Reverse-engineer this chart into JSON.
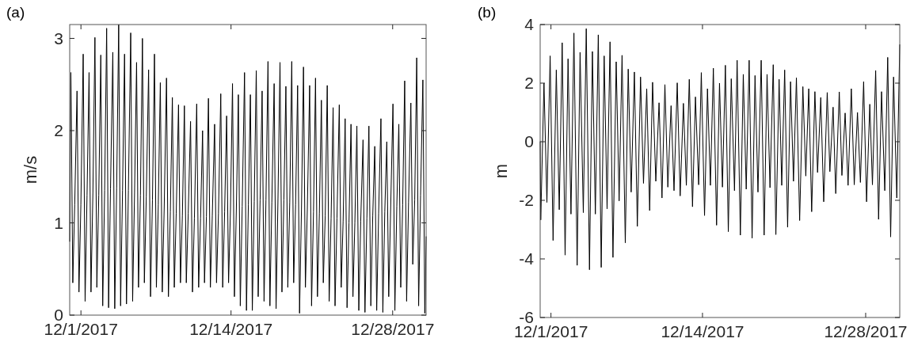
{
  "chart_data": [
    {
      "type": "line",
      "title": "(a)",
      "ylabel": "m/s",
      "color": "#000000",
      "xlim": [
        "2017-11-30T00:37",
        "2017-12-30T21:32"
      ],
      "ylim": [
        0,
        3.15
      ],
      "xticks": [
        {
          "value": "2017-12-01",
          "label": "12/1/2017"
        },
        {
          "value": "2017-12-14",
          "label": "12/14/2017"
        },
        {
          "value": "2017-12-28",
          "label": "12/28/2017"
        }
      ],
      "yticks": [
        0,
        1,
        2,
        3
      ],
      "x": [
        "2017-11-30T00:37",
        "2017-11-30T03:03",
        "2017-11-30T07:03",
        "2017-11-30T11:03",
        "2017-11-30T15:52",
        "2017-11-30T19:52",
        "2017-11-30T23:52",
        "2017-12-01T04:40",
        "2017-12-01T08:40",
        "2017-12-01T12:40",
        "2017-12-01T16:52",
        "2017-12-01T20:52",
        "2017-12-02T00:52",
        "2017-12-02T05:04",
        "2017-12-02T09:04",
        "2017-12-02T13:04",
        "2017-12-02T17:16",
        "2017-12-02T21:16",
        "2017-12-03T01:16",
        "2017-12-03T05:27",
        "2017-12-03T09:27",
        "2017-12-03T13:27",
        "2017-12-03T18:16",
        "2017-12-03T22:16",
        "2017-12-04T02:16",
        "2017-12-04T06:27",
        "2017-12-04T10:27",
        "2017-12-04T14:27",
        "2017-12-04T18:39",
        "2017-12-04T22:39",
        "2017-12-05T02:39",
        "2017-12-05T07:27",
        "2017-12-05T11:27",
        "2017-12-05T15:27",
        "2017-12-05T19:39",
        "2017-12-05T23:39",
        "2017-12-06T03:39",
        "2017-12-06T07:50",
        "2017-12-06T11:50",
        "2017-12-06T15:50",
        "2017-12-06T20:39",
        "2017-12-07T00:39",
        "2017-12-07T04:39",
        "2017-12-07T08:50",
        "2017-12-07T12:50",
        "2017-12-07T16:50",
        "2017-12-07T21:02",
        "2017-12-08T01:02",
        "2017-12-08T05:02",
        "2017-12-08T09:51",
        "2017-12-08T13:51",
        "2017-12-08T17:51",
        "2017-12-08T22:02",
        "2017-12-09T02:02",
        "2017-12-09T06:02",
        "2017-12-09T10:51",
        "2017-12-09T14:51",
        "2017-12-09T18:51",
        "2017-12-09T23:02",
        "2017-12-10T03:02",
        "2017-12-10T07:02",
        "2017-12-10T11:51",
        "2017-12-10T15:51",
        "2017-12-10T19:51",
        "2017-12-11T00:40",
        "2017-12-11T04:40",
        "2017-12-11T08:40",
        "2017-12-11T12:51",
        "2017-12-11T16:51",
        "2017-12-11T20:51",
        "2017-12-12T01:03",
        "2017-12-12T05:03",
        "2017-12-12T09:03",
        "2017-12-12T13:51",
        "2017-12-12T17:51",
        "2017-12-12T21:51",
        "2017-12-13T02:40",
        "2017-12-13T06:40",
        "2017-12-13T10:40",
        "2017-12-13T14:52",
        "2017-12-13T18:52",
        "2017-12-13T22:52",
        "2017-12-14T03:03",
        "2017-12-14T07:03",
        "2017-12-14T11:03",
        "2017-12-14T15:15",
        "2017-12-14T19:15",
        "2017-12-14T23:15",
        "2017-12-15T04:04",
        "2017-12-15T08:04",
        "2017-12-15T12:04",
        "2017-12-15T16:15",
        "2017-12-15T20:15",
        "2017-12-16T00:15",
        "2017-12-16T04:27",
        "2017-12-16T08:27",
        "2017-12-16T12:27",
        "2017-12-16T16:38",
        "2017-12-16T20:38",
        "2017-12-17T00:38",
        "2017-12-17T04:50",
        "2017-12-17T08:50",
        "2017-12-17T12:50",
        "2017-12-17T17:38",
        "2017-12-17T21:38",
        "2017-12-18T01:38",
        "2017-12-18T05:50",
        "2017-12-18T09:50",
        "2017-12-18T13:50",
        "2017-12-18T18:02",
        "2017-12-18T22:02",
        "2017-12-19T02:02",
        "2017-12-19T06:14",
        "2017-12-19T10:14",
        "2017-12-19T14:14",
        "2017-12-19T18:26",
        "2017-12-19T22:26",
        "2017-12-20T02:26",
        "2017-12-20T06:37",
        "2017-12-20T10:37",
        "2017-12-20T14:37",
        "2017-12-20T19:26",
        "2017-12-20T23:26",
        "2017-12-21T03:26",
        "2017-12-21T07:38",
        "2017-12-21T11:38",
        "2017-12-21T15:38",
        "2017-12-21T19:49",
        "2017-12-21T23:49",
        "2017-12-22T03:49",
        "2017-12-22T08:01",
        "2017-12-22T12:01",
        "2017-12-22T16:01",
        "2017-12-22T20:13",
        "2017-12-23T00:13",
        "2017-12-23T04:13",
        "2017-12-23T09:01",
        "2017-12-23T13:01",
        "2017-12-23T17:01",
        "2017-12-23T21:13",
        "2017-12-24T01:13",
        "2017-12-24T05:13",
        "2017-12-24T09:25",
        "2017-12-24T13:25",
        "2017-12-24T17:25",
        "2017-12-24T21:37",
        "2017-12-25T01:37",
        "2017-12-25T05:37",
        "2017-12-25T10:25",
        "2017-12-25T14:25",
        "2017-12-25T18:25",
        "2017-12-25T22:37",
        "2017-12-26T02:37",
        "2017-12-26T06:37",
        "2017-12-26T10:49",
        "2017-12-26T14:49",
        "2017-12-26T18:49",
        "2017-12-26T23:37",
        "2017-12-27T03:37",
        "2017-12-27T07:37",
        "2017-12-27T11:49",
        "2017-12-27T15:49",
        "2017-12-27T19:49",
        "2017-12-28T00:37",
        "2017-12-28T04:37",
        "2017-12-28T08:37",
        "2017-12-28T12:49",
        "2017-12-28T16:49",
        "2017-12-28T20:49",
        "2017-12-29T01:01",
        "2017-12-29T05:01",
        "2017-12-29T09:01",
        "2017-12-29T13:49",
        "2017-12-29T17:49",
        "2017-12-29T21:49",
        "2017-12-30T02:01",
        "2017-12-30T06:01",
        "2017-12-30T10:01",
        "2017-12-30T14:49",
        "2017-12-30T18:49",
        "2017-12-30T21:32"
      ],
      "values": [
        0.8,
        2.63,
        0.35,
        1.2,
        2.43,
        0.25,
        1.2,
        2.83,
        0.15,
        1.3,
        2.63,
        0.25,
        1.33,
        3.01,
        0.3,
        1.3,
        2.82,
        0.1,
        1.35,
        3.11,
        0.08,
        1.37,
        2.85,
        0.07,
        1.38,
        3.15,
        0.1,
        1.35,
        2.83,
        0.12,
        1.35,
        3.06,
        0.15,
        1.33,
        2.74,
        0.3,
        1.3,
        3.0,
        0.35,
        1.28,
        2.66,
        0.2,
        1.25,
        2.83,
        0.3,
        1.2,
        2.52,
        0.25,
        1.15,
        2.57,
        0.2,
        1.12,
        2.36,
        0.3,
        1.1,
        2.28,
        0.35,
        1.08,
        2.27,
        0.35,
        1.1,
        2.1,
        0.25,
        1.05,
        2.29,
        0.3,
        1.05,
        2.0,
        0.35,
        1.07,
        2.35,
        0.3,
        1.08,
        2.07,
        0.35,
        1.1,
        2.4,
        0.3,
        1.12,
        2.16,
        0.35,
        1.15,
        2.51,
        0.2,
        1.15,
        2.39,
        0.1,
        1.18,
        2.63,
        0.05,
        1.2,
        2.39,
        0.05,
        1.23,
        2.65,
        0.2,
        1.25,
        2.43,
        0.15,
        1.25,
        2.75,
        0.1,
        1.22,
        2.51,
        0.07,
        1.27,
        2.74,
        0.25,
        1.25,
        2.48,
        0.3,
        1.22,
        2.75,
        0.35,
        1.2,
        2.49,
        0.02,
        1.15,
        2.69,
        0.3,
        1.15,
        2.49,
        0.1,
        1.12,
        2.57,
        0.2,
        1.1,
        2.33,
        0.35,
        1.08,
        2.49,
        0.15,
        1.05,
        2.25,
        0.1,
        1.05,
        2.28,
        0.3,
        1.02,
        2.13,
        0.08,
        1.0,
        2.07,
        0.2,
        1.0,
        2.05,
        0.05,
        1.02,
        1.9,
        0.03,
        1.05,
        2.05,
        0.1,
        1.08,
        1.83,
        0.05,
        1.1,
        2.13,
        0.03,
        1.12,
        1.88,
        0.2,
        1.15,
        2.29,
        0.05,
        1.18,
        2.07,
        0.3,
        1.2,
        2.54,
        0.15,
        1.22,
        2.3,
        0.55,
        1.25,
        2.79,
        0.1,
        1.3,
        2.55,
        0.02,
        0.85
      ]
    },
    {
      "type": "line",
      "title": "(b)",
      "ylabel": "m",
      "color": "#000000",
      "xlim": [
        "2017-11-30T01:46",
        "2017-12-30T22:10"
      ],
      "ylim": [
        -6,
        4
      ],
      "xticks": [
        {
          "value": "2017-12-01",
          "label": "12/1/2017"
        },
        {
          "value": "2017-12-14",
          "label": "12/14/2017"
        },
        {
          "value": "2017-12-28",
          "label": "12/28/2017"
        }
      ],
      "yticks": [
        -6,
        -4,
        -2,
        0,
        2,
        4
      ],
      "x": [
        "2017-11-30T01:46",
        "2017-11-30T02:59",
        "2017-11-30T09:38",
        "2017-11-30T15:40",
        "2017-11-30T22:19",
        "2017-12-01T04:22",
        "2017-12-01T11:01",
        "2017-12-01T17:04",
        "2017-12-01T23:06",
        "2017-12-02T05:08",
        "2017-12-02T11:11",
        "2017-12-02T17:14",
        "2017-12-02T23:17",
        "2017-12-03T05:55",
        "2017-12-03T11:58",
        "2017-12-03T18:37",
        "2017-12-04T00:40",
        "2017-12-04T07:19",
        "2017-12-04T13:21",
        "2017-12-04T19:24",
        "2017-12-05T01:26",
        "2017-12-05T07:29",
        "2017-12-05T13:32",
        "2017-12-05T19:34",
        "2017-12-06T01:37",
        "2017-12-06T07:40",
        "2017-12-06T14:19",
        "2017-12-06T20:22",
        "2017-12-07T02:24",
        "2017-12-07T09:03",
        "2017-12-07T15:05",
        "2017-12-07T21:08",
        "2017-12-08T03:47",
        "2017-12-08T09:50",
        "2017-12-08T16:28",
        "2017-12-08T22:31",
        "2017-12-09T05:10",
        "2017-12-09T11:13",
        "2017-12-09T17:16",
        "2017-12-09T23:54",
        "2017-12-10T06:33",
        "2017-12-10T12:36",
        "2017-12-10T18:38",
        "2017-12-11T00:41",
        "2017-12-11T07:20",
        "2017-12-11T13:23",
        "2017-12-11T20:01",
        "2017-12-12T02:04",
        "2017-12-12T08:43",
        "2017-12-12T14:46",
        "2017-12-12T20:49",
        "2017-12-13T03:27",
        "2017-12-13T09:30",
        "2017-12-13T16:08",
        "2017-12-13T21:35",
        "2017-12-14T04:14",
        "2017-12-14T10:16",
        "2017-12-14T16:19",
        "2017-12-14T22:22",
        "2017-12-15T05:01",
        "2017-12-15T11:04",
        "2017-12-15T17:06",
        "2017-12-15T23:09",
        "2017-12-16T05:11",
        "2017-12-16T11:14",
        "2017-12-16T17:53",
        "2017-12-16T23:19",
        "2017-12-17T05:58",
        "2017-12-17T12:01",
        "2017-12-17T18:04",
        "2017-12-18T00:06",
        "2017-12-18T06:09",
        "2017-12-18T12:11",
        "2017-12-18T18:14",
        "2017-12-19T00:53",
        "2017-12-19T06:56",
        "2017-12-19T12:58",
        "2017-12-19T19:01",
        "2017-12-20T01:40",
        "2017-12-20T07:06",
        "2017-12-20T13:45",
        "2017-12-20T19:11",
        "2017-12-21T01:14",
        "2017-12-21T07:17",
        "2017-12-21T13:19",
        "2017-12-21T19:22",
        "2017-12-22T01:25",
        "2017-12-22T08:04",
        "2017-12-22T14:43",
        "2017-12-22T20:45",
        "2017-12-23T02:48",
        "2017-12-23T08:50",
        "2017-12-23T15:29",
        "2017-12-23T20:56",
        "2017-12-24T03:35",
        "2017-12-24T09:37",
        "2017-12-24T16:52",
        "2017-12-24T22:19",
        "2017-12-25T04:58",
        "2017-12-25T10:24",
        "2017-12-25T17:39",
        "2017-12-25T23:05",
        "2017-12-26T05:44",
        "2017-12-26T11:47",
        "2017-12-26T18:26",
        "2017-12-27T00:29",
        "2017-12-27T07:08",
        "2017-12-27T13:10",
        "2017-12-27T19:49",
        "2017-12-28T01:52",
        "2017-12-28T08:31",
        "2017-12-28T13:57",
        "2017-12-28T20:36",
        "2017-12-29T02:38",
        "2017-12-29T08:41",
        "2017-12-29T15:20",
        "2017-12-29T21:23",
        "2017-12-30T03:25",
        "2017-12-30T09:28",
        "2017-12-30T16:07",
        "2017-12-30T22:10"
      ],
      "values": [
        0,
        -2.67,
        2.0,
        -2.07,
        2.93,
        -3.37,
        2.45,
        -2.32,
        3.38,
        -3.87,
        2.83,
        -2.47,
        3.71,
        -4.22,
        3.05,
        -2.42,
        3.86,
        -4.37,
        3.08,
        -2.47,
        3.65,
        -4.29,
        2.93,
        -2.29,
        3.41,
        -3.95,
        2.73,
        -2.02,
        2.95,
        -3.45,
        2.48,
        -1.72,
        2.38,
        -2.89,
        2.21,
        -1.42,
        1.81,
        -2.35,
        2.03,
        -1.35,
        1.33,
        -1.92,
        1.95,
        -1.55,
        1.23,
        -1.67,
        2.01,
        -1.85,
        1.31,
        -1.49,
        2.13,
        -2.22,
        1.53,
        -1.47,
        2.36,
        -2.52,
        1.81,
        -1.49,
        2.51,
        -2.85,
        2.0,
        -1.55,
        2.61,
        -3.07,
        2.15,
        -1.67,
        2.78,
        -3.19,
        2.3,
        -1.62,
        2.78,
        -3.29,
        2.26,
        -1.72,
        2.78,
        -3.19,
        2.3,
        -1.57,
        2.63,
        -3.17,
        2.13,
        -1.49,
        2.45,
        -2.92,
        2.05,
        -1.35,
        2.18,
        -2.69,
        1.88,
        -1.17,
        1.81,
        -2.39,
        1.71,
        -1.05,
        1.51,
        -2.05,
        1.68,
        -1.02,
        1.18,
        -1.77,
        1.7,
        -1.15,
        0.98,
        -1.49,
        1.81,
        -1.47,
        1.0,
        -1.39,
        2.05,
        -2.05,
        1.28,
        -1.47,
        2.43,
        -2.65,
        1.71,
        -1.67,
        2.88,
        -3.25,
        2.21,
        -1.92,
        3.31
      ]
    }
  ]
}
